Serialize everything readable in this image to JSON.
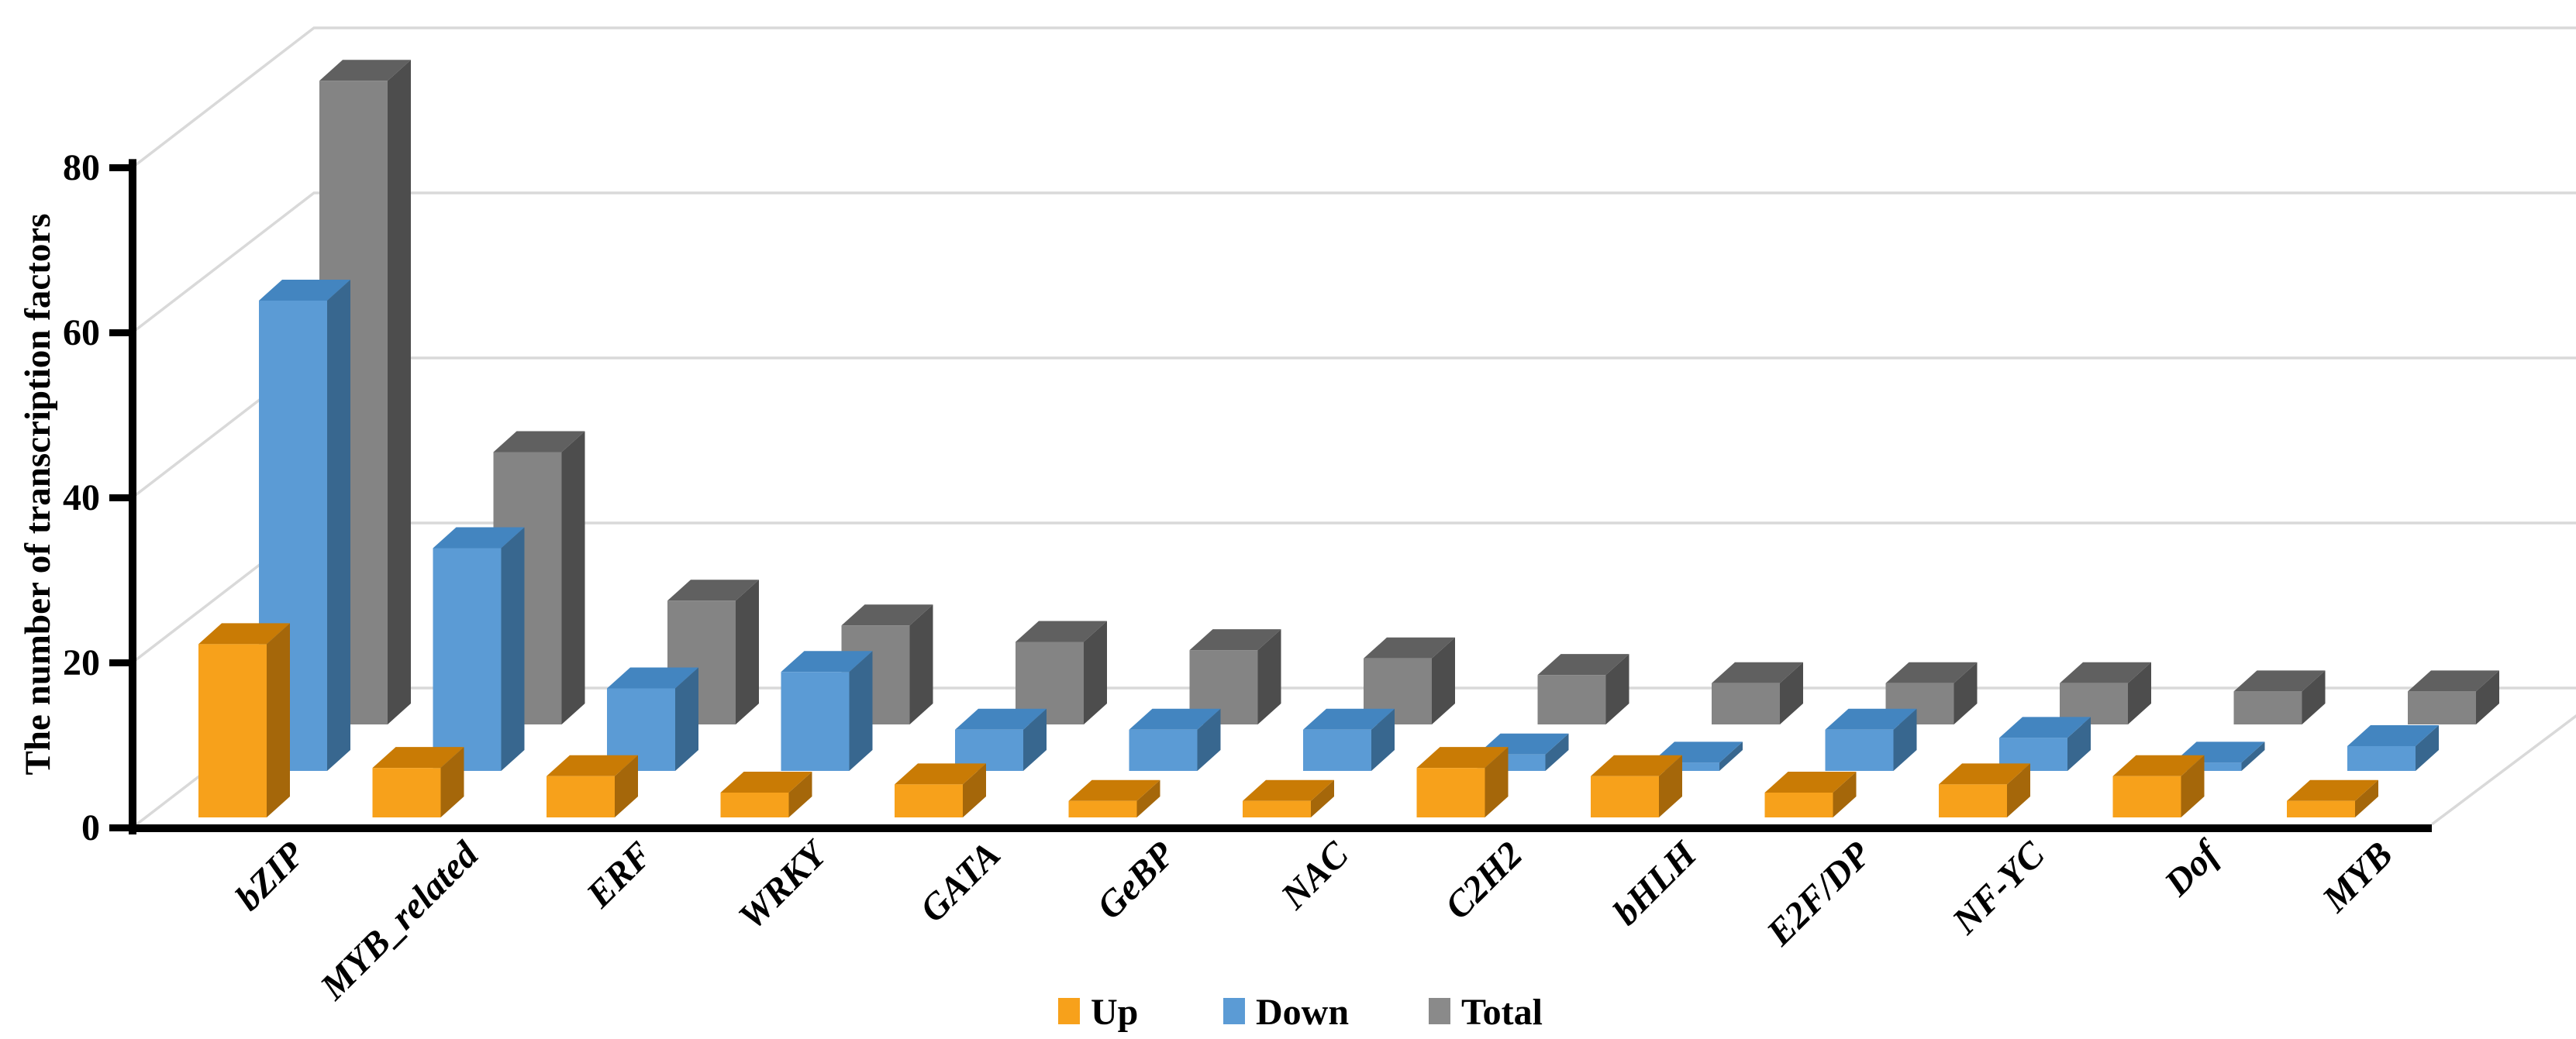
{
  "chart_data": {
    "type": "bar",
    "variant": "3d-clustered-column",
    "title": "",
    "xlabel": "",
    "ylabel": "The number of transcription factors",
    "ylim": [
      0,
      80
    ],
    "yticks": [
      0,
      20,
      40,
      60,
      80
    ],
    "grid": true,
    "legend_position": "bottom-center",
    "background": "#FFFFFF",
    "axis_color": "#000000",
    "gridline_color": "#D9D9D9",
    "categories": [
      "bZIP",
      "MYB_related",
      "ERF",
      "WRKY",
      "GATA",
      "GeBP",
      "NAC",
      "C2H2",
      "bHLH",
      "E2F/DP",
      "NF-YC",
      "Dof",
      "MYB"
    ],
    "series": [
      {
        "name": "Up",
        "values": [
          21,
          6,
          5,
          3,
          4,
          2,
          2,
          6,
          5,
          3,
          4,
          5,
          2
        ],
        "colors": {
          "front": "#F7A11B",
          "top": "#C97B05",
          "side": "#A5670A",
          "swatch": "#F7A11B"
        }
      },
      {
        "name": "Down",
        "values": [
          57,
          27,
          10,
          12,
          5,
          5,
          5,
          2,
          1,
          5,
          4,
          1,
          3
        ],
        "colors": {
          "front": "#5B9BD5",
          "top": "#4385C0",
          "side": "#38678F",
          "swatch": "#5B9BD5"
        }
      },
      {
        "name": "Total",
        "values": [
          78,
          33,
          15,
          12,
          10,
          9,
          8,
          6,
          5,
          5,
          5,
          4,
          4
        ],
        "colors": {
          "front": "#848484",
          "top": "#606060",
          "side": "#4D4D4D",
          "swatch": "#8A8A8A"
        }
      }
    ]
  }
}
